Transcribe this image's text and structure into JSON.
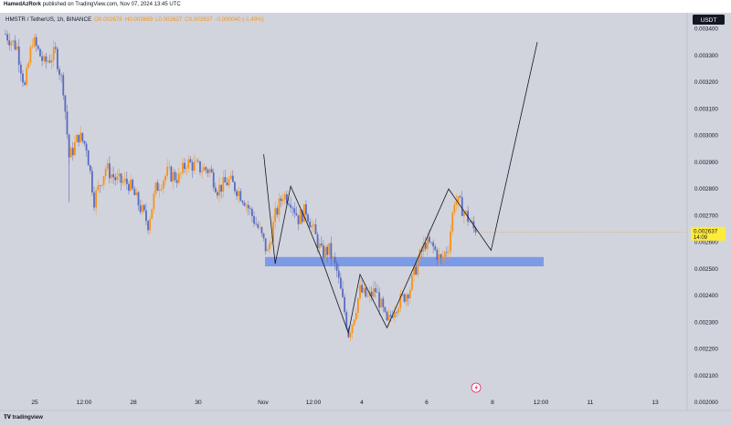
{
  "header": {
    "author": "HamedAzRork",
    "publish_text": " published on TradingView.com, Nov 07, 2024 13:45 UTC"
  },
  "symbol_line": {
    "pair": "HMSTR / TetherUS, 1h, BINANCE",
    "open": "O0.002678",
    "high": "H0.002689",
    "low": "L0.002637",
    "close": "C0.002637",
    "change": "-0.000040 (-1.49%)"
  },
  "currency_button": "USDT",
  "price_label": {
    "value": "0.002637",
    "countdown": "14:09"
  },
  "footer_brand": "tradingview",
  "colors": {
    "bull": "#f7931a",
    "bear": "#5b6bbf",
    "zone": "#6f8fe8",
    "price_tag": "#ffeb3b",
    "line": "#131722"
  },
  "chart_data": {
    "type": "candlestick",
    "timeframe": "1h",
    "x_ticks": [
      "25",
      "12:00",
      "28",
      "30",
      "Nov",
      "12:00",
      "4",
      "6",
      "8",
      "12:00",
      "11",
      "13"
    ],
    "y_ticks": [
      "0.003400",
      "0.003300",
      "0.003200",
      "0.003100",
      "0.003000",
      "0.002900",
      "0.002800",
      "0.002700",
      "0.002600",
      "0.002500",
      "0.002400",
      "0.002300",
      "0.002200",
      "0.002100",
      "0.002000"
    ],
    "ylim": [
      0.00197,
      0.00346
    ],
    "last_price": 0.002637,
    "support_zone": {
      "low": 0.00251,
      "high": 0.002545
    },
    "price_path": [
      {
        "t": 0,
        "p": 0.00338
      },
      {
        "t": 3,
        "p": 0.00333
      },
      {
        "t": 5,
        "p": 0.00318
      },
      {
        "t": 7,
        "p": 0.00336
      },
      {
        "t": 10,
        "p": 0.00327
      },
      {
        "t": 13,
        "p": 0.00331
      },
      {
        "t": 15,
        "p": 0.00318
      },
      {
        "t": 16.5,
        "p": 0.00292
      },
      {
        "t": 17,
        "p": 0.00293
      },
      {
        "t": 19,
        "p": 0.003
      },
      {
        "t": 21,
        "p": 0.00296
      },
      {
        "t": 23,
        "p": 0.00276
      },
      {
        "t": 26,
        "p": 0.00288
      },
      {
        "t": 29,
        "p": 0.00283
      },
      {
        "t": 32,
        "p": 0.00282
      },
      {
        "t": 35,
        "p": 0.00273
      },
      {
        "t": 37,
        "p": 0.00267
      },
      {
        "t": 39,
        "p": 0.0028
      },
      {
        "t": 42,
        "p": 0.00286
      },
      {
        "t": 45,
        "p": 0.00284
      },
      {
        "t": 47,
        "p": 0.0029
      },
      {
        "t": 50,
        "p": 0.00288
      },
      {
        "t": 53,
        "p": 0.00287
      },
      {
        "t": 55,
        "p": 0.0028
      },
      {
        "t": 58,
        "p": 0.00283
      },
      {
        "t": 60,
        "p": 0.0028
      },
      {
        "t": 62,
        "p": 0.00276
      },
      {
        "t": 64,
        "p": 0.0027
      },
      {
        "t": 66,
        "p": 0.00264
      },
      {
        "t": 68,
        "p": 0.00256
      },
      {
        "t": 70,
        "p": 0.0027
      },
      {
        "t": 72,
        "p": 0.00278
      },
      {
        "t": 74,
        "p": 0.00276
      },
      {
        "t": 76,
        "p": 0.00269
      },
      {
        "t": 78,
        "p": 0.00272
      },
      {
        "t": 80,
        "p": 0.00264
      },
      {
        "t": 82,
        "p": 0.00256
      },
      {
        "t": 84,
        "p": 0.00257
      },
      {
        "t": 86,
        "p": 0.00249
      },
      {
        "t": 88,
        "p": 0.00234
      },
      {
        "t": 89,
        "p": 0.00226
      },
      {
        "t": 90,
        "p": 0.0023
      },
      {
        "t": 92,
        "p": 0.00242
      },
      {
        "t": 94,
        "p": 0.00239
      },
      {
        "t": 96,
        "p": 0.00242
      },
      {
        "t": 98,
        "p": 0.00234
      },
      {
        "t": 99,
        "p": 0.00229
      },
      {
        "t": 101,
        "p": 0.00236
      },
      {
        "t": 103,
        "p": 0.00239
      },
      {
        "t": 105,
        "p": 0.00243
      },
      {
        "t": 107,
        "p": 0.00253
      },
      {
        "t": 109,
        "p": 0.0026
      },
      {
        "t": 111,
        "p": 0.00258
      },
      {
        "t": 113,
        "p": 0.00253
      },
      {
        "t": 115,
        "p": 0.00259
      },
      {
        "t": 116.5,
        "p": 0.00276
      },
      {
        "t": 118,
        "p": 0.00274
      },
      {
        "t": 120,
        "p": 0.00269
      },
      {
        "t": 122,
        "p": 0.002637
      }
    ],
    "drawn_path": [
      {
        "t": 67,
        "p": 0.00293
      },
      {
        "t": 70,
        "p": 0.00252
      },
      {
        "t": 74,
        "p": 0.00281
      },
      {
        "t": 78,
        "p": 0.00268
      },
      {
        "t": 82,
        "p": 0.00254
      },
      {
        "t": 89,
        "p": 0.00226
      },
      {
        "t": 92,
        "p": 0.00248
      },
      {
        "t": 99,
        "p": 0.00228
      },
      {
        "t": 115,
        "p": 0.0028
      },
      {
        "t": 126,
        "p": 0.00257
      },
      {
        "t": 138,
        "p": 0.00335
      }
    ]
  }
}
